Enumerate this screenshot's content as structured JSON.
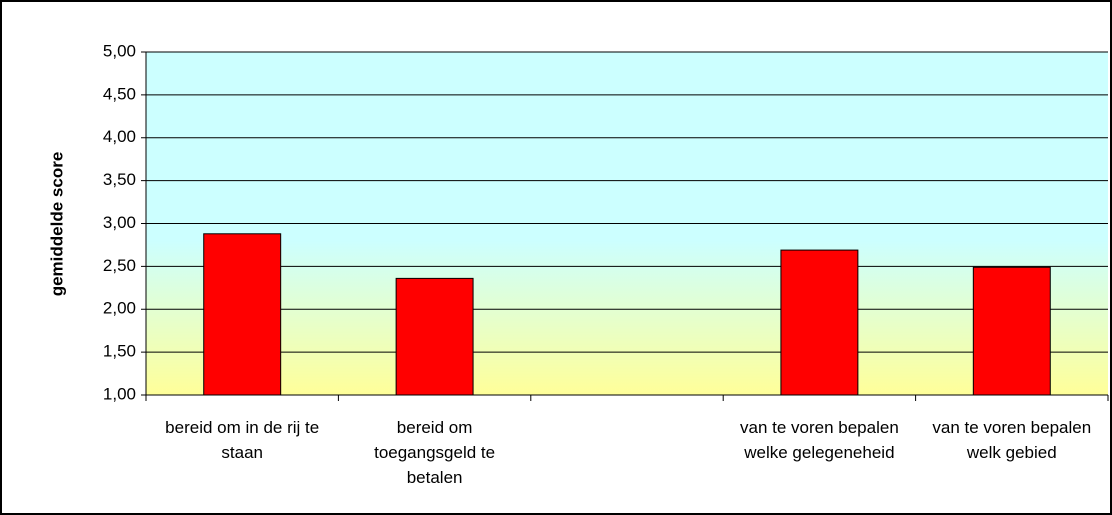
{
  "chart_data": {
    "type": "bar",
    "y_label": "gemiddelde score",
    "categories": [
      "bereid om in de rij te staan",
      "bereid om toegangsgeld te betalen",
      null,
      "van te voren bepalen welke gelegeneheid",
      "van te voren bepalen welk gebied"
    ],
    "values": [
      2.88,
      2.36,
      null,
      2.69,
      2.49
    ],
    "color": "#ff0000",
    "plot_background": [
      "#ccffff",
      "#ffff99"
    ],
    "ylim": [
      1,
      5
    ],
    "yticks": [
      {
        "value": 1,
        "label": "1,00"
      },
      {
        "value": 1.5,
        "label": "1,50"
      },
      {
        "value": 2,
        "label": "2,00"
      },
      {
        "value": 2.5,
        "label": "2,50"
      },
      {
        "value": 3,
        "label": "3,00"
      },
      {
        "value": 3.5,
        "label": "3,50"
      },
      {
        "value": 4,
        "label": "4,00"
      },
      {
        "value": 4.5,
        "label": "4,50"
      },
      {
        "value": 5,
        "label": "5,00"
      }
    ],
    "grid": true
  }
}
